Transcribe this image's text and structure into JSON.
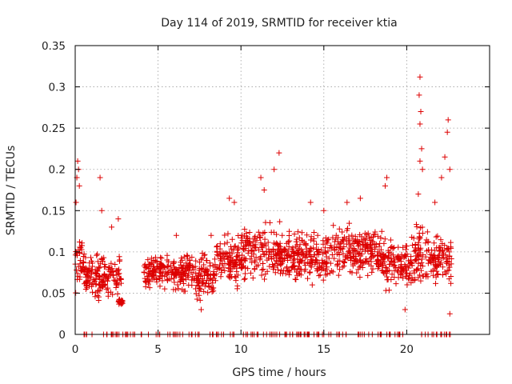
{
  "chart_data": {
    "type": "scatter",
    "title": "Day 114 of 2019, SRMTID for receiver ktia",
    "xlabel": "GPS time / hours",
    "ylabel": "SRMTID / TECUs",
    "xlim": [
      0,
      25
    ],
    "ylim": [
      0,
      0.35
    ],
    "grid": true,
    "marker": "+",
    "color": "#dd0000",
    "x_ticks": [
      0,
      5,
      10,
      15,
      20
    ],
    "x_tick_labels": [
      "0",
      "5",
      "10",
      "15",
      "20"
    ],
    "y_ticks": [
      0,
      0.05,
      0.1,
      0.15,
      0.2,
      0.25,
      0.3,
      0.35
    ],
    "y_tick_labels": [
      "0",
      "0.05",
      "0.1",
      "0.15",
      "0.2",
      "0.25",
      "0.3",
      "0.35"
    ],
    "series": [
      {
        "name": "SRMTID",
        "segments": [
          {
            "x_range": [
              0.0,
              0.6
            ],
            "mean": 0.09,
            "spread": 0.05,
            "outliers": [
              [
                0.05,
                0.16
              ],
              [
                0.1,
                0.19
              ],
              [
                0.15,
                0.21
              ],
              [
                0.2,
                0.2
              ],
              [
                0.25,
                0.18
              ]
            ]
          },
          {
            "x_range": [
              0.6,
              2.8
            ],
            "mean": 0.07,
            "spread": 0.035,
            "outliers": [
              [
                1.5,
                0.19
              ],
              [
                1.6,
                0.15
              ],
              [
                2.2,
                0.13
              ],
              [
                2.6,
                0.14
              ]
            ]
          },
          {
            "x_range": [
              2.6,
              2.9
            ],
            "mean": 0.04,
            "spread": 0.005,
            "outliers": []
          },
          {
            "x_range": [
              4.1,
              7.0
            ],
            "mean": 0.075,
            "spread": 0.03,
            "outliers": [
              [
                6.1,
                0.12
              ]
            ]
          },
          {
            "x_range": [
              7.0,
              8.5
            ],
            "mean": 0.07,
            "spread": 0.035,
            "outliers": [
              [
                7.6,
                0.03
              ],
              [
                8.2,
                0.12
              ]
            ]
          },
          {
            "x_range": [
              8.5,
              10.0
            ],
            "mean": 0.09,
            "spread": 0.04,
            "outliers": [
              [
                9.3,
                0.165
              ],
              [
                9.6,
                0.16
              ]
            ]
          },
          {
            "x_range": [
              10.0,
              12.4
            ],
            "mean": 0.1,
            "spread": 0.045,
            "outliers": [
              [
                11.2,
                0.19
              ],
              [
                12.0,
                0.2
              ],
              [
                12.3,
                0.22
              ],
              [
                11.4,
                0.175
              ]
            ]
          },
          {
            "x_range": [
              12.4,
              15.5
            ],
            "mean": 0.095,
            "spread": 0.04,
            "outliers": [
              [
                14.2,
                0.16
              ],
              [
                15.0,
                0.15
              ]
            ]
          },
          {
            "x_range": [
              15.5,
              18.5
            ],
            "mean": 0.1,
            "spread": 0.04,
            "outliers": [
              [
                16.4,
                0.16
              ],
              [
                17.2,
                0.165
              ]
            ]
          },
          {
            "x_range": [
              18.5,
              20.5
            ],
            "mean": 0.085,
            "spread": 0.04,
            "outliers": [
              [
                18.7,
                0.18
              ],
              [
                18.8,
                0.19
              ],
              [
                19.9,
                0.03
              ]
            ]
          },
          {
            "x_range": [
              20.5,
              21.3
            ],
            "mean": 0.1,
            "spread": 0.05,
            "outliers": [
              [
                20.8,
                0.312
              ],
              [
                20.75,
                0.29
              ],
              [
                20.85,
                0.27
              ],
              [
                20.8,
                0.255
              ],
              [
                20.9,
                0.225
              ],
              [
                20.8,
                0.21
              ],
              [
                20.95,
                0.2
              ],
              [
                20.7,
                0.17
              ]
            ]
          },
          {
            "x_range": [
              21.3,
              22.7
            ],
            "mean": 0.09,
            "spread": 0.04,
            "outliers": [
              [
                22.5,
                0.26
              ],
              [
                22.45,
                0.245
              ],
              [
                22.3,
                0.215
              ],
              [
                22.1,
                0.19
              ],
              [
                22.6,
                0.2
              ],
              [
                21.7,
                0.16
              ],
              [
                22.6,
                0.025
              ]
            ]
          }
        ],
        "zero_level_ranges": [
          [
            0.5,
            3.0
          ],
          [
            3.0,
            4.5
          ],
          [
            4.8,
            9.0
          ],
          [
            9.2,
            16.5
          ],
          [
            17.0,
            20.2
          ],
          [
            20.5,
            22.7
          ]
        ]
      }
    ]
  }
}
